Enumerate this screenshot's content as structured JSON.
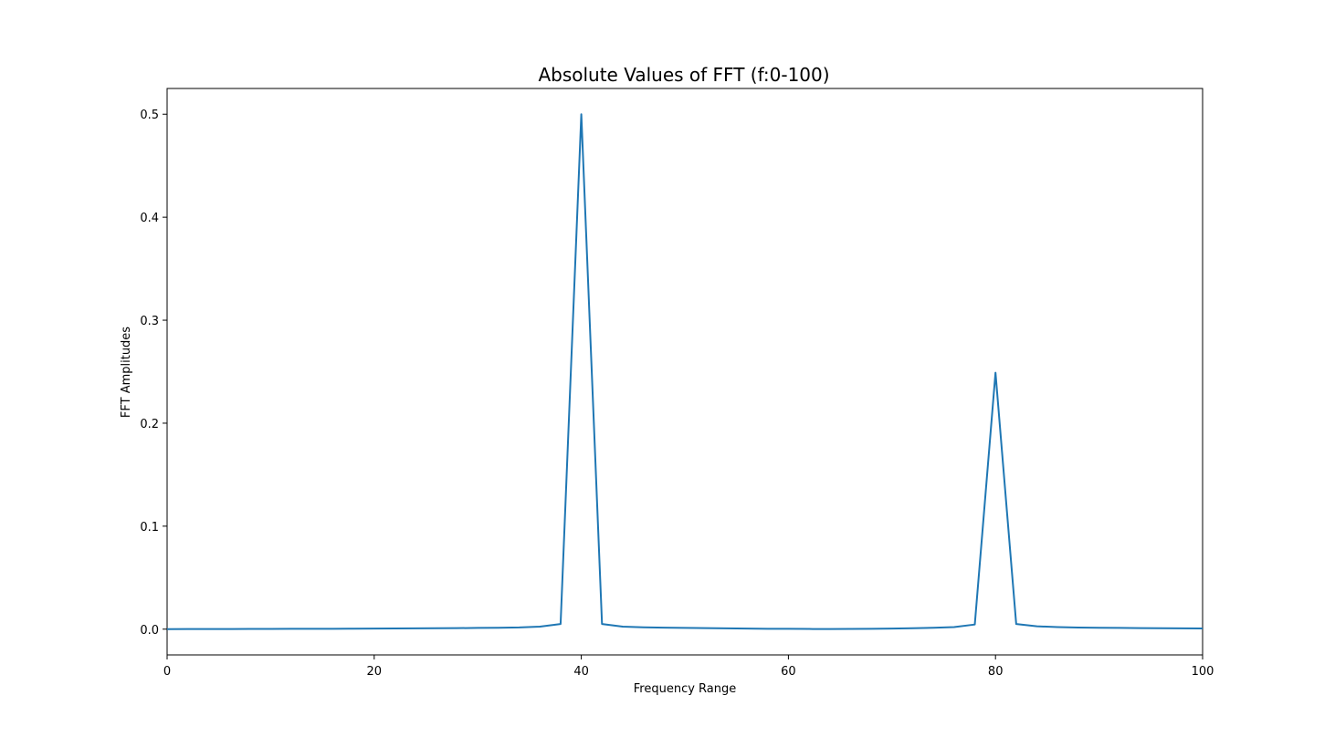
{
  "chart_data": {
    "type": "line",
    "title": "Absolute Values of FFT (f:0-100)",
    "xlabel": "Frequency Range",
    "ylabel": "FFT Amplitudes",
    "xlim": [
      0,
      100
    ],
    "ylim": [
      -0.025,
      0.525
    ],
    "xticks": [
      0,
      20,
      40,
      60,
      80,
      100
    ],
    "xtick_labels": [
      "0",
      "20",
      "40",
      "60",
      "80",
      "100"
    ],
    "yticks": [
      0.0,
      0.1,
      0.2,
      0.3,
      0.4,
      0.5
    ],
    "ytick_labels": [
      "0.0",
      "0.1",
      "0.2",
      "0.3",
      "0.4",
      "0.5"
    ],
    "grid": false,
    "line_color": "#1f77b4",
    "x": [
      0,
      2,
      4,
      6,
      8,
      10,
      12,
      14,
      16,
      18,
      20,
      22,
      24,
      26,
      28,
      30,
      32,
      34,
      36,
      38,
      40,
      42,
      44,
      46,
      48,
      50,
      52,
      54,
      56,
      58,
      60,
      62,
      64,
      66,
      68,
      70,
      72,
      74,
      76,
      78,
      80,
      82,
      84,
      86,
      88,
      90,
      92,
      94,
      96,
      98,
      100
    ],
    "y": [
      0.0,
      0.0001,
      0.0001,
      0.0001,
      0.0002,
      0.0002,
      0.0003,
      0.0004,
      0.0004,
      0.0005,
      0.0006,
      0.0007,
      0.0008,
      0.0009,
      0.001,
      0.0012,
      0.0014,
      0.0017,
      0.0025,
      0.005,
      0.5,
      0.005,
      0.0025,
      0.0018,
      0.0015,
      0.0012,
      0.001,
      0.0008,
      0.0006,
      0.0004,
      0.0003,
      0.0002,
      0.0001,
      0.0002,
      0.0004,
      0.0006,
      0.0009,
      0.0013,
      0.002,
      0.0045,
      0.249,
      0.005,
      0.0028,
      0.002,
      0.0016,
      0.0014,
      0.0012,
      0.001,
      0.0009,
      0.0008,
      0.0007
    ]
  }
}
